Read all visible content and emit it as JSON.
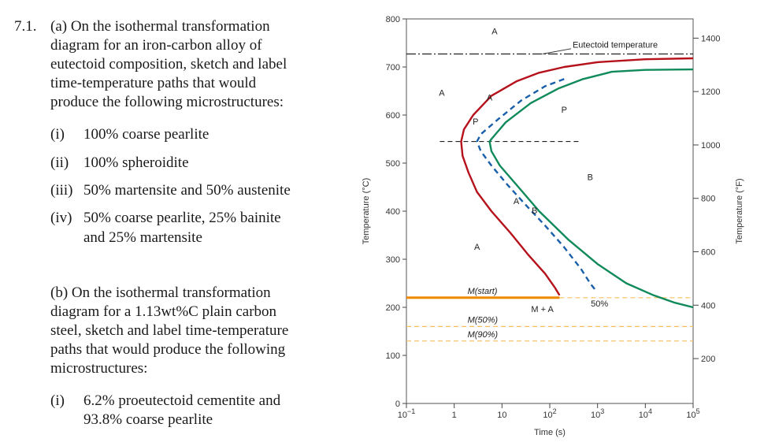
{
  "problem": {
    "number": "7.1.",
    "part_a": {
      "lines": [
        "(a)  On the isothermal transformation",
        "diagram for an iron-carbon alloy of",
        "eutectoid composition, sketch and label",
        "time-temperature paths that would",
        "produce the following microstructures:"
      ],
      "items": [
        {
          "label": "(i)",
          "text": "100% coarse pearlite"
        },
        {
          "label": "(ii)",
          "text": "100% spheroidite"
        },
        {
          "label": "(iii)",
          "text": "50% martensite and 50% austenite"
        },
        {
          "label": "(iv)",
          "text": "50% coarse pearlite, 25% bainite"
        }
      ],
      "item4_cont": "and 25% martensite"
    },
    "part_b": {
      "lines": [
        "(b)  On the isothermal transformation",
        "diagram for a 1.13wt%C plain carbon",
        "steel, sketch and label time-temperature",
        "paths that would produce the following",
        "microstructures:"
      ],
      "items": [
        {
          "label": "(i)",
          "text": "6.2% proeutectoid cementite and"
        }
      ],
      "item1_cont": "93.8% coarse pearlite"
    }
  },
  "chart_data": {
    "type": "line",
    "xlabel": "Time (s)",
    "ylabel": "Temperature (°C)",
    "ylabel_right": "Temperature (°F)",
    "x_scale": "log",
    "xlim": [
      0.1,
      100000
    ],
    "ylim": [
      0,
      800
    ],
    "x_ticks": [
      {
        "v": 0.1,
        "base": "10",
        "exp": "−1"
      },
      {
        "v": 1,
        "base": "1",
        "exp": ""
      },
      {
        "v": 10,
        "base": "10",
        "exp": ""
      },
      {
        "v": 100,
        "base": "10",
        "exp": "2"
      },
      {
        "v": 1000,
        "base": "10",
        "exp": "3"
      },
      {
        "v": 10000,
        "base": "10",
        "exp": "4"
      },
      {
        "v": 100000,
        "base": "10",
        "exp": "5"
      }
    ],
    "y_ticks": [
      0,
      100,
      200,
      300,
      400,
      500,
      600,
      700,
      800
    ],
    "y_ticks_f": [
      200,
      400,
      600,
      800,
      1000,
      1200,
      1400
    ],
    "series": [
      {
        "color": "#b5121b",
        "style": "solid",
        "points": [
          [
            100000,
            718
          ],
          [
            10000,
            716
          ],
          [
            1000,
            710
          ],
          [
            200,
            700
          ],
          [
            60,
            688
          ],
          [
            20,
            670
          ],
          [
            6,
            640
          ],
          [
            2.5,
            600
          ],
          [
            1.6,
            570
          ],
          [
            1.4,
            545
          ],
          [
            1.5,
            515
          ],
          [
            2,
            480
          ],
          [
            3,
            440
          ],
          [
            6,
            400
          ],
          [
            15,
            355
          ],
          [
            35,
            310
          ],
          [
            80,
            270
          ],
          [
            130,
            240
          ],
          [
            160,
            225
          ]
        ]
      },
      {
        "color": "#108a5a",
        "style": "solid",
        "points": [
          [
            100000,
            695
          ],
          [
            10000,
            694
          ],
          [
            2000,
            690
          ],
          [
            500,
            675
          ],
          [
            150,
            655
          ],
          [
            40,
            625
          ],
          [
            12,
            585
          ],
          [
            6,
            550
          ],
          [
            5.5,
            545
          ],
          [
            6,
            525
          ],
          [
            9,
            495
          ],
          [
            20,
            455
          ],
          [
            60,
            400
          ],
          [
            250,
            340
          ],
          [
            1000,
            290
          ],
          [
            4000,
            250
          ],
          [
            15000,
            225
          ],
          [
            40000,
            210
          ],
          [
            100000,
            200
          ]
        ]
      },
      {
        "color": "#1a5faa",
        "style": "dashed",
        "points": [
          [
            200,
            675
          ],
          [
            80,
            660
          ],
          [
            25,
            630
          ],
          [
            8,
            590
          ],
          [
            3.6,
            560
          ],
          [
            3,
            545
          ],
          [
            3.6,
            525
          ],
          [
            6,
            495
          ],
          [
            13,
            455
          ],
          [
            30,
            415
          ],
          [
            80,
            370
          ],
          [
            200,
            325
          ],
          [
            450,
            280
          ],
          [
            700,
            250
          ],
          [
            950,
            233
          ]
        ]
      }
    ],
    "h_lines": [
      {
        "y": 727,
        "color": "#222222",
        "style": "dashdot"
      },
      {
        "y": 545,
        "color": "#222222",
        "style": "dashed"
      },
      {
        "y": 220,
        "color": "#f08a00",
        "style": "solid"
      },
      {
        "y": 220,
        "color": "#f5c060",
        "style": "dashed"
      },
      {
        "y": 160,
        "color": "#f5c060",
        "style": "dashed"
      },
      {
        "y": 130,
        "color": "#f5c060",
        "style": "dashed"
      }
    ],
    "regions": [
      {
        "text": "A",
        "x": 7,
        "y": 768,
        "italic": false
      },
      {
        "text": "A",
        "x": 0.55,
        "y": 640,
        "italic": false
      },
      {
        "text": "P",
        "x": 200,
        "y": 605,
        "italic": false
      },
      {
        "text": "B",
        "x": 700,
        "y": 465,
        "italic": false
      },
      {
        "text": "A",
        "x": 3,
        "y": 320,
        "italic": false
      },
      {
        "text": "M + A",
        "x": 70,
        "y": 190,
        "italic": false
      },
      {
        "text": "50%",
        "x": 1100,
        "y": 202,
        "italic": false
      },
      {
        "text": "A",
        "x": 5.5,
        "y": 630,
        "italic": false
      },
      {
        "text": "P",
        "x": 2.8,
        "y": 580,
        "italic": false
      },
      {
        "text": "A",
        "x": 20,
        "y": 415,
        "italic": false
      },
      {
        "text": "B",
        "x": 48,
        "y": 395,
        "italic": false
      }
    ],
    "annotations": [
      {
        "text": "M(start)",
        "x": 1.9,
        "y": 228
      },
      {
        "text": "M(50%)",
        "x": 1.9,
        "y": 168
      },
      {
        "text": "M(90%)",
        "x": 1.9,
        "y": 138
      }
    ],
    "eutectoid_label": "Eutectoid temperature"
  }
}
